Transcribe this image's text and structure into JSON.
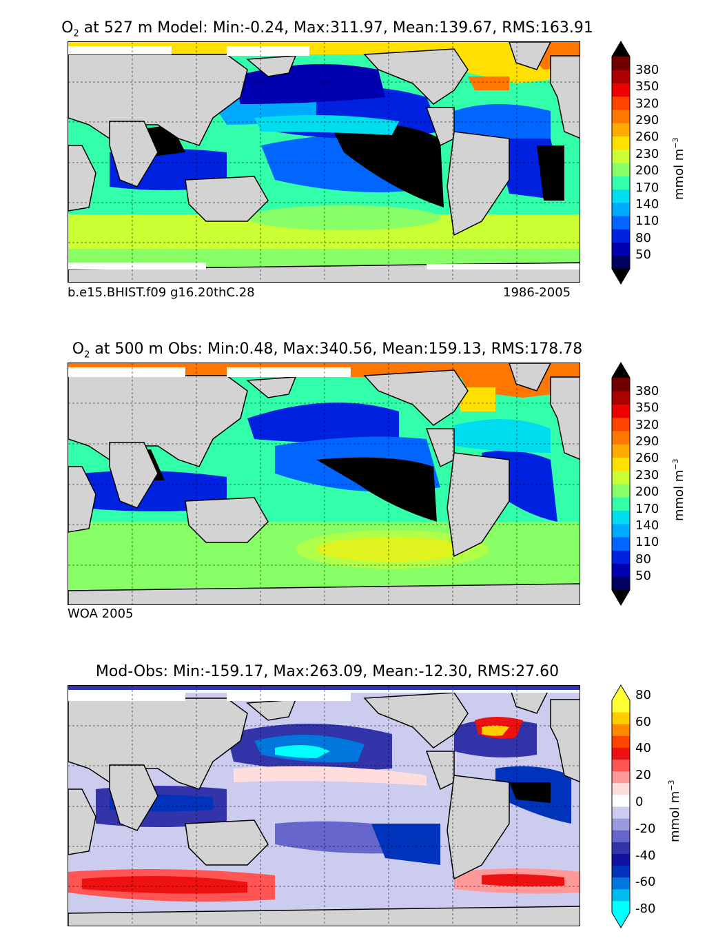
{
  "panels": [
    {
      "id": "model",
      "title_main": "O",
      "title_sub": "2",
      "title_rest": " at 527 m Model: Min:-0.24, Max:311.97, Mean:139.67, RMS:163.91",
      "caption_left": "b.e15.BHIST.f09 g16.20thC.28",
      "caption_right": "1986-2005"
    },
    {
      "id": "obs",
      "title_main": "O",
      "title_sub": "2",
      "title_rest": " at 500 m Obs: Min:0.48, Max:340.56, Mean:159.13, RMS:178.78",
      "caption_left": "WOA 2005",
      "caption_right": ""
    },
    {
      "id": "diff",
      "title_main": "Mod-Obs: Min:-159.17, Max:263.09, Mean:-12.30, RMS:27.60",
      "title_sub": "",
      "title_rest": "",
      "caption_left": "",
      "caption_right": ""
    }
  ],
  "colorbars": {
    "o2": {
      "ticks": [
        "380",
        "350",
        "320",
        "290",
        "260",
        "230",
        "200",
        "170",
        "140",
        "110",
        "80",
        "50"
      ],
      "colors": [
        "#000060",
        "#0000b0",
        "#0022e0",
        "#0066ff",
        "#00aaff",
        "#00ddee",
        "#33ffaa",
        "#88ff66",
        "#ccff33",
        "#ffe000",
        "#ffaa00",
        "#ff7700",
        "#ff4400",
        "#ee0000",
        "#aa0000",
        "#700000"
      ],
      "over_color": "#000000",
      "under_color": "#000000",
      "unit": "mmol m",
      "unit_sup": "−3"
    },
    "diff": {
      "ticks": [
        "80",
        "60",
        "40",
        "20",
        "0",
        "-20",
        "-40",
        "-60",
        "-80"
      ],
      "colors": [
        "#00ffff",
        "#00bbee",
        "#0077dd",
        "#0033bb",
        "#1111a0",
        "#3333aa",
        "#6666cc",
        "#9999dd",
        "#ccccee",
        "#ffffff",
        "#ffdddd",
        "#ff9999",
        "#ff5555",
        "#ee1111",
        "#ff4400",
        "#ff8800",
        "#ffcc00",
        "#ffff33"
      ],
      "unit": "mmol m",
      "unit_sup": "−3"
    }
  },
  "legend": {
    "land_color": "#d3d3d3",
    "missing_color": "#ffffff",
    "oxygen_min_zone_color": "#000000"
  }
}
